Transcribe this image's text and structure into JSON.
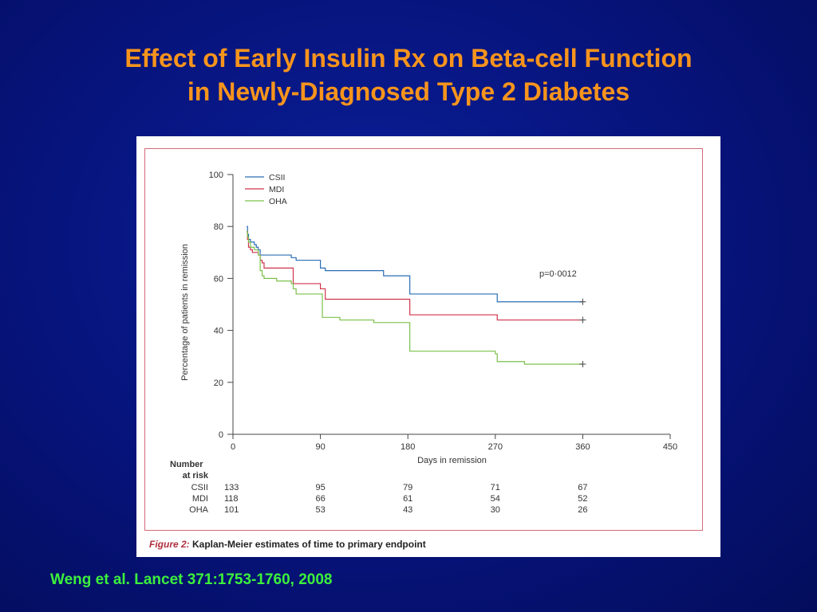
{
  "slide": {
    "title_line1": "Effect of Early Insulin Rx on Beta-cell Function",
    "title_line2": "in Newly-Diagnosed Type 2 Diabetes",
    "citation": "Weng et al.  Lancet 371:1753-1760, 2008"
  },
  "figure": {
    "caption_label": "Figure 2:",
    "caption_text": " Kaplan-Meier estimates of time to primary endpoint"
  },
  "colors": {
    "csii": "#2a6db5",
    "mdi": "#d0354c",
    "oha": "#7cc04a",
    "title": "#f7941d",
    "citation": "#3cf03c"
  },
  "chart_data": {
    "type": "line",
    "step": true,
    "xlabel": "Days in remission",
    "ylabel": "Percentage of patients in remission",
    "xlim": [
      0,
      450
    ],
    "ylim": [
      0,
      100
    ],
    "xticks": [
      "0",
      "90",
      "180",
      "270",
      "360",
      "450"
    ],
    "yticks": [
      "0",
      "20",
      "40",
      "60",
      "80",
      "100"
    ],
    "annotation": "p=0·0012",
    "legend_position": "top-left",
    "series": [
      {
        "name": "CSII",
        "color": "#2a6db5",
        "x": [
          14,
          15,
          16,
          18,
          20,
          22,
          24,
          26,
          28,
          30,
          35,
          48,
          60,
          65,
          88,
          90,
          95,
          150,
          155,
          180,
          182,
          270,
          272,
          360
        ],
        "y": [
          80,
          77,
          75,
          74,
          74,
          73,
          72,
          71,
          69,
          69,
          69,
          69,
          68,
          67,
          67,
          64,
          63,
          63,
          61,
          61,
          54,
          54,
          51,
          51
        ],
        "censored_x": 360
      },
      {
        "name": "MDI",
        "color": "#d0354c",
        "x": [
          14,
          15,
          16,
          18,
          20,
          22,
          26,
          28,
          30,
          32,
          40,
          60,
          62,
          75,
          90,
          95,
          180,
          182,
          270,
          272,
          360
        ],
        "y": [
          78,
          75,
          72,
          71,
          70,
          70,
          69,
          67,
          66,
          64,
          64,
          64,
          58,
          58,
          56,
          52,
          52,
          46,
          46,
          44,
          44
        ],
        "censored_x": 360
      },
      {
        "name": "OHA",
        "color": "#7cc04a",
        "x": [
          14,
          15,
          16,
          18,
          22,
          26,
          28,
          30,
          32,
          45,
          60,
          62,
          65,
          90,
          92,
          110,
          145,
          180,
          182,
          270,
          272,
          300,
          360
        ],
        "y": [
          78,
          76,
          74,
          72,
          71,
          69,
          63,
          61,
          60,
          59,
          58,
          56,
          54,
          54,
          45,
          44,
          43,
          43,
          32,
          31,
          28,
          27,
          27
        ],
        "censored_x": 360
      }
    ],
    "risk_table": {
      "header_line1": "Number",
      "header_line2": "at risk",
      "timepoints": [
        0,
        90,
        180,
        270,
        360
      ],
      "rows": [
        {
          "label": "CSII",
          "values": [
            "133",
            "95",
            "79",
            "71",
            "67"
          ]
        },
        {
          "label": "MDI",
          "values": [
            "118",
            "66",
            "61",
            "54",
            "52"
          ]
        },
        {
          "label": "OHA",
          "values": [
            "101",
            "53",
            "43",
            "30",
            "26"
          ]
        }
      ]
    }
  }
}
